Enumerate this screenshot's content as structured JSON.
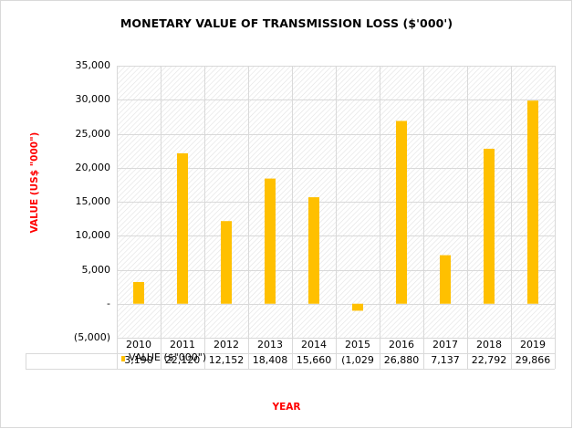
{
  "chart_data": {
    "type": "bar",
    "title": "MONETARY VALUE OF TRANSMISSION LOSS ($'000')",
    "xlabel": "YEAR",
    "ylabel": "VALUE (US$ \"000\")",
    "categories": [
      "2010",
      "2011",
      "2012",
      "2013",
      "2014",
      "2015",
      "2016",
      "2017",
      "2018",
      "2019"
    ],
    "series": [
      {
        "name": "VALUE ($\"000\")",
        "values": [
          3190,
          22120,
          12152,
          18408,
          15660,
          -1029,
          26880,
          7137,
          22792,
          29866
        ],
        "labels": [
          "3,190",
          "22,120",
          "12,152",
          "18,408",
          "15,660",
          "(1,029",
          "26,880",
          "7,137",
          "22,792",
          "29,866"
        ],
        "color": "#ffc000"
      }
    ],
    "ylim": [
      -5000,
      35000
    ],
    "yticks": [
      {
        "value": 35000,
        "label": "35,000"
      },
      {
        "value": 30000,
        "label": "30,000"
      },
      {
        "value": 25000,
        "label": "25,000"
      },
      {
        "value": 20000,
        "label": "20,000"
      },
      {
        "value": 15000,
        "label": "15,000"
      },
      {
        "value": 10000,
        "label": "10,000"
      },
      {
        "value": 5000,
        "label": "5,000"
      },
      {
        "value": 0,
        "label": "-"
      },
      {
        "value": -5000,
        "label": "(5,000)"
      }
    ],
    "grid": true,
    "legend": "data-table",
    "colors": {
      "bar": "#ffc000",
      "title_axis": "#ff0000",
      "grid": "#d9d9d9",
      "hatch": "#e2e2e2"
    }
  }
}
